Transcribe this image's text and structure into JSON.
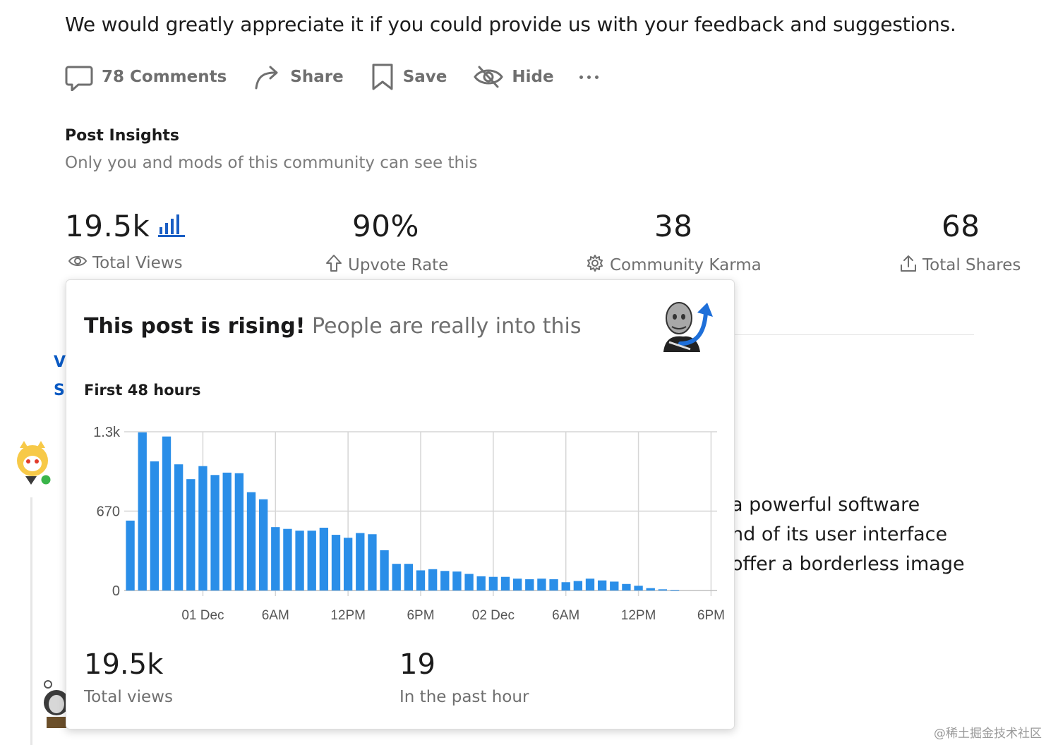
{
  "post": {
    "intro_text": "We would greatly appreciate it if you could provide us with your feedback and suggestions."
  },
  "actions": {
    "comments": "78 Comments",
    "share": "Share",
    "save": "Save",
    "hide": "Hide"
  },
  "insights": {
    "title": "Post Insights",
    "subtitle": "Only you and mods of this community can see this",
    "stats": {
      "views": {
        "value": "19.5k",
        "label": "Total Views"
      },
      "upvote": {
        "value": "90%",
        "label": "Upvote Rate"
      },
      "karma": {
        "value": "38",
        "label": "Community Karma"
      },
      "shares": {
        "value": "68",
        "label": "Total Shares"
      }
    }
  },
  "background": {
    "side_letters": [
      "V",
      "S"
    ],
    "lines": [
      "a powerful software",
      "nd of its user interface",
      "offer a borderless image"
    ]
  },
  "popup": {
    "title_bold": "This post is rising!",
    "title_rest": "People are really into this",
    "chart_heading": "First 48 hours",
    "total_views_value": "19.5k",
    "total_views_label": "Total views",
    "past_hour_value": "19",
    "past_hour_label": "In the past hour"
  },
  "chart_data": {
    "type": "bar",
    "title": "First 48 hours",
    "ylabel": "",
    "xlabel": "",
    "yticks": [
      "0",
      "670",
      "1.3k"
    ],
    "ytick_values": [
      0,
      670,
      1340
    ],
    "ylim": [
      0,
      1340
    ],
    "xticks": [
      "01 Dec",
      "6AM",
      "12PM",
      "6PM",
      "02 Dec",
      "6AM",
      "12PM",
      "6PM"
    ],
    "xtick_hours": [
      3,
      9,
      15,
      21,
      27,
      33,
      39,
      45
    ],
    "grid": true,
    "bar_color": "#2a8ee8",
    "x_hours": [
      -3,
      -2,
      -1,
      0,
      1,
      2,
      3,
      4,
      5,
      6,
      7,
      8,
      9,
      10,
      11,
      12,
      13,
      14,
      15,
      16,
      17,
      18,
      19,
      20,
      21,
      22,
      23,
      24,
      25,
      26,
      27,
      28,
      29,
      30,
      31,
      32,
      33,
      34,
      35,
      36,
      37,
      38,
      39,
      40,
      41,
      42,
      43
    ],
    "values": [
      590,
      1335,
      1090,
      1300,
      1065,
      940,
      1050,
      975,
      995,
      990,
      830,
      770,
      535,
      520,
      505,
      505,
      530,
      470,
      445,
      485,
      475,
      340,
      225,
      225,
      170,
      180,
      165,
      160,
      140,
      120,
      115,
      115,
      100,
      95,
      100,
      95,
      70,
      80,
      100,
      85,
      75,
      55,
      40,
      20,
      10,
      5,
      0
    ]
  },
  "watermark": "@稀土掘金技术社区"
}
